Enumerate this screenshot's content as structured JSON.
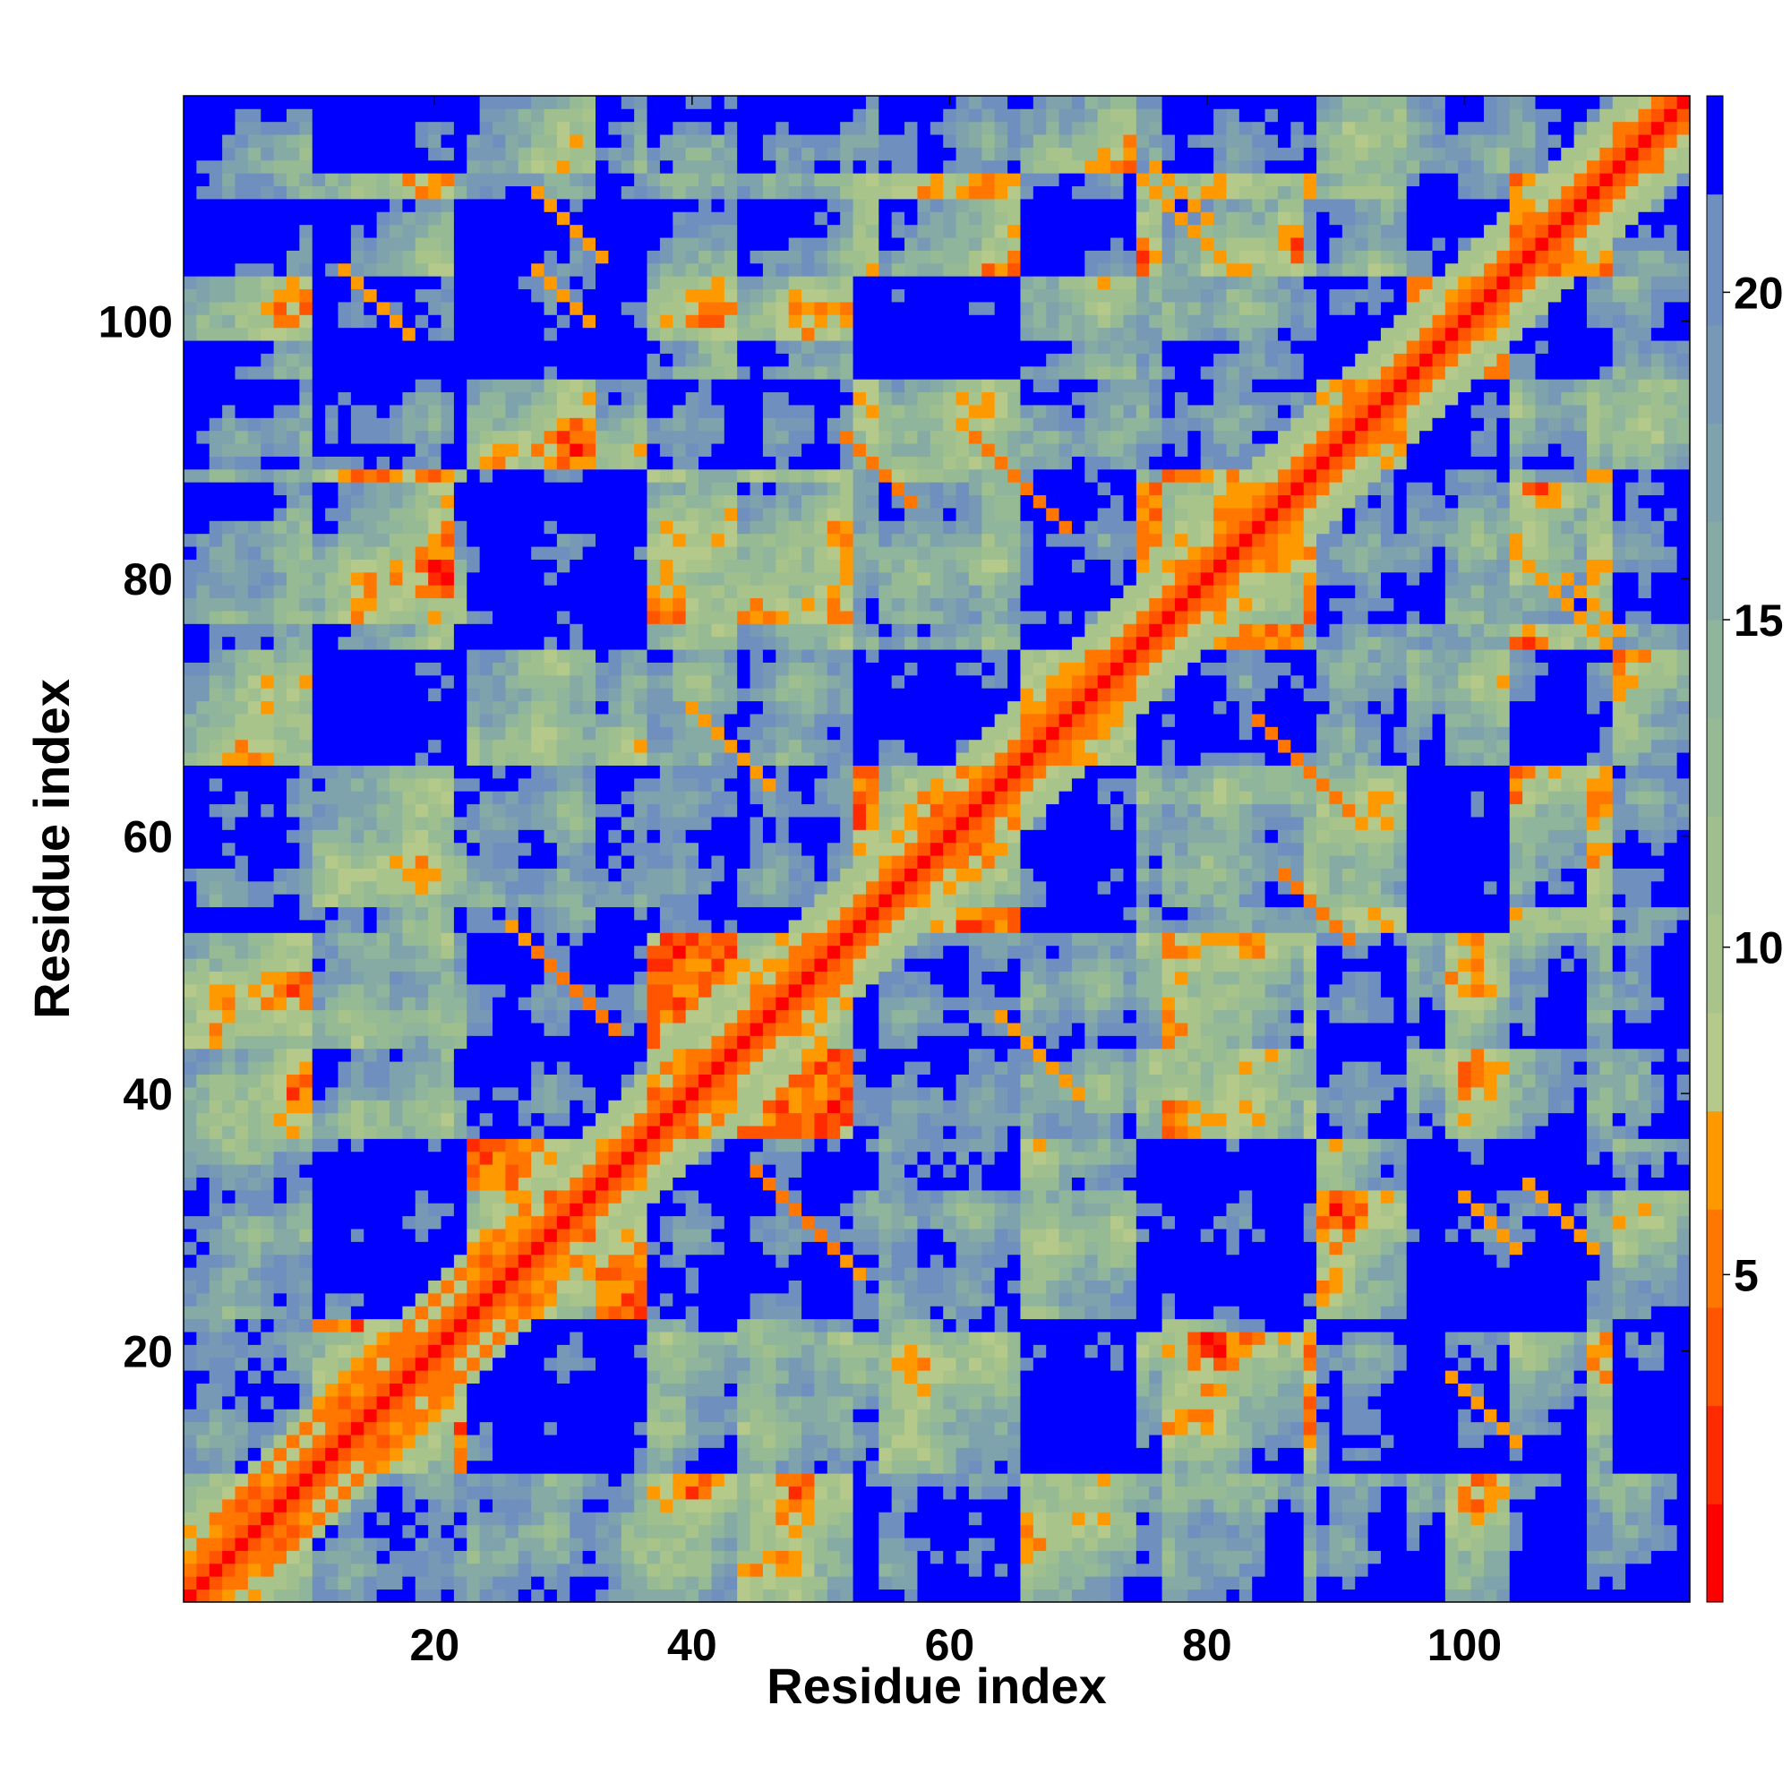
{
  "chart_data": {
    "type": "heatmap",
    "title": "",
    "xlabel": "Residue index",
    "ylabel": "Residue index",
    "n_residues": 117,
    "xlim": [
      0.5,
      117.5
    ],
    "ylim": [
      0.5,
      117.5
    ],
    "x_ticks": [
      20,
      40,
      60,
      80,
      100
    ],
    "y_ticks": [
      20,
      40,
      60,
      80,
      100
    ],
    "colorbar": {
      "ticks": [
        5,
        10,
        15,
        20
      ],
      "range": [
        0,
        23
      ],
      "bands": [
        {
          "max": 1.5,
          "color": "#ff0000"
        },
        {
          "max": 3,
          "color": "#ff2a00"
        },
        {
          "max": 4.5,
          "color": "#ff5500"
        },
        {
          "max": 6,
          "color": "#ff7700"
        },
        {
          "max": 7.5,
          "color": "#ff9900"
        },
        {
          "max": 9,
          "color": "#b5c98a"
        },
        {
          "max": 10.5,
          "color": "#a8c48a"
        },
        {
          "max": 12,
          "color": "#9fc08e"
        },
        {
          "max": 13.5,
          "color": "#96ba94"
        },
        {
          "max": 15,
          "color": "#8fb59c"
        },
        {
          "max": 16.5,
          "color": "#86aaa4"
        },
        {
          "max": 18,
          "color": "#7fa3ac"
        },
        {
          "max": 19.5,
          "color": "#7799b5"
        },
        {
          "max": 21.5,
          "color": "#6f8fbf"
        },
        {
          "max": 23,
          "color": "#0000ff"
        }
      ],
      "cutoff_color": "#0000ff"
    },
    "structure": {
      "diagonal_values": [
        0,
        3.8,
        5.8
      ],
      "centers": [
        [
          2,
          10
        ],
        [
          18,
          22
        ],
        [
          28,
          36
        ],
        [
          44,
          52
        ],
        [
          55,
          65
        ],
        [
          68,
          74
        ],
        [
          85,
          88
        ],
        [
          92,
          95
        ],
        [
          99,
          103
        ],
        [
          106,
          111
        ],
        [
          113,
          117
        ]
      ],
      "contact_bands": [
        {
          "type": "parallel",
          "i": [
            3,
            25
          ],
          "offset": 0,
          "value": 5.6
        },
        {
          "type": "antiparallel",
          "i": [
            28,
            34
          ],
          "sum": 79,
          "value": 6.0
        },
        {
          "type": "antiparallel",
          "i": [
            26,
            33
          ],
          "sum": 79,
          "value": 6.5
        },
        {
          "type": "antiparallel",
          "i": [
            40,
            46
          ],
          "sum": 110,
          "value": 6.2
        },
        {
          "type": "antiparallel",
          "i": [
            62,
            69
          ],
          "sum": 153,
          "value": 6.0
        },
        {
          "type": "antiparallel",
          "i": [
            86,
            91
          ],
          "sum": 143,
          "value": 6.0
        },
        {
          "type": "antiparallel",
          "i": [
            76,
            80
          ],
          "sum": 188,
          "value": 6.5
        },
        {
          "type": "antiparallel",
          "i": [
            100,
            104
          ],
          "sum": 132,
          "value": 6.5
        },
        {
          "type": "antiparallel",
          "i": [
            104,
            110
          ],
          "sum": 186,
          "value": 6.5
        },
        {
          "type": "antiparallel",
          "i": [
            28,
            33
          ],
          "sum": 138,
          "value": 6.5
        },
        {
          "type": "antiparallel",
          "i": [
            13,
            18
          ],
          "sum": 117,
          "value": 6.5
        }
      ]
    }
  }
}
